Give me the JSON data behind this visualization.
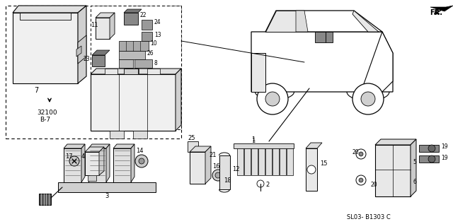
{
  "bg": "#ffffff",
  "fig_w": 6.4,
  "fig_h": 3.17,
  "dpi": 100,
  "ref_code": "SL03- B1303 C",
  "part_ref": "32100\nB-7"
}
